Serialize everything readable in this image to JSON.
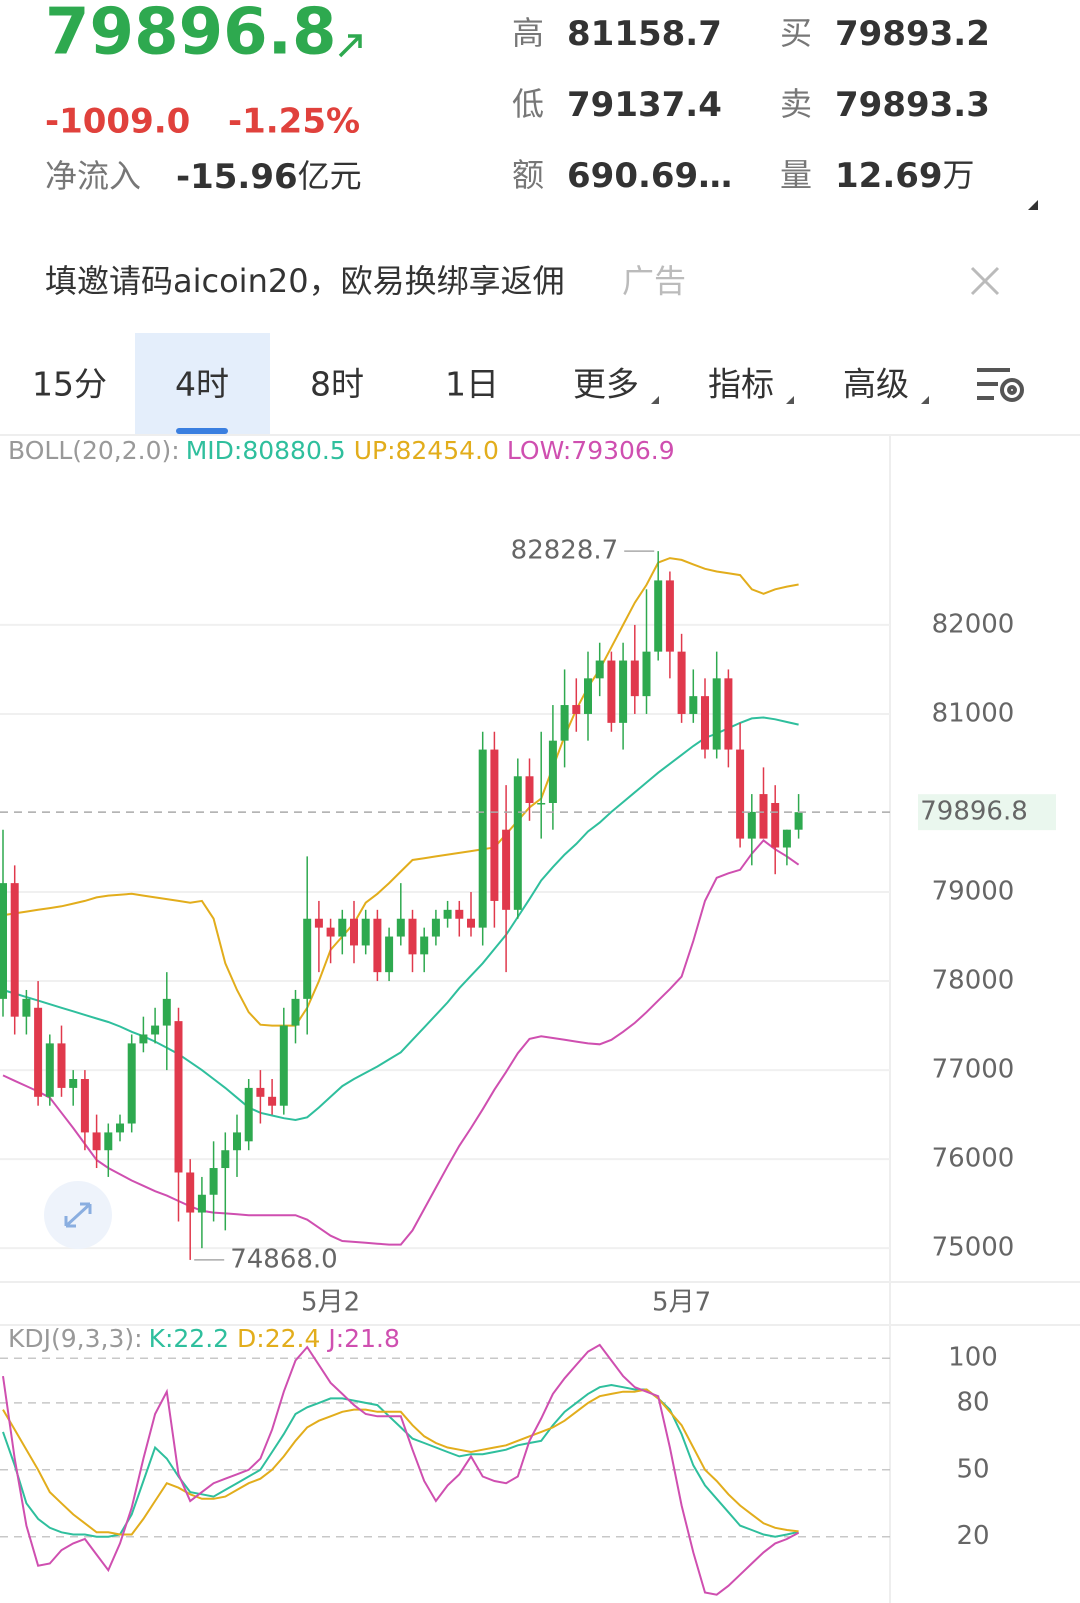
{
  "header": {
    "price": "79896.8",
    "change": "-1009.0",
    "change_pct": "-1.25%",
    "inflow_label": "净流入",
    "inflow_value": "-15.96",
    "inflow_unit": "亿元",
    "stats": [
      {
        "label": "高",
        "value": "81158.7"
      },
      {
        "label": "低",
        "value": "79137.4"
      },
      {
        "label": "额",
        "value": "690.69…"
      },
      {
        "label": "买",
        "value": "79893.2"
      },
      {
        "label": "卖",
        "value": "79893.3"
      },
      {
        "label": "量",
        "value": "12.69",
        "unit": "万"
      }
    ]
  },
  "ad": {
    "text": "填邀请码aicoin20，欧易换绑享返佣",
    "tag": "广告"
  },
  "tabs": [
    "15分",
    "4时",
    "8时",
    "1日",
    "更多",
    "指标",
    "高级"
  ],
  "active_tab": "4时",
  "chart_data": [
    {
      "type": "candlestick",
      "indicator_label": "BOLL(20,2.0):",
      "up_color": "#2ea94f",
      "down_color": "#e0394c",
      "grid": true,
      "categories": [
        null,
        null,
        null,
        null,
        null,
        null,
        null,
        null,
        null,
        null,
        null,
        null,
        null,
        null,
        null,
        null,
        null,
        null,
        null,
        null,
        null,
        null,
        null,
        null,
        null,
        null,
        null,
        null,
        "5月2",
        null,
        null,
        null,
        null,
        null,
        null,
        null,
        null,
        null,
        null,
        null,
        null,
        null,
        null,
        null,
        null,
        null,
        null,
        null,
        null,
        null,
        null,
        null,
        null,
        null,
        null,
        null,
        null,
        null,
        "5月7",
        null,
        null,
        null,
        null,
        null,
        null,
        null,
        null,
        null,
        null
      ],
      "open": [
        77800,
        79100,
        77600,
        77700,
        76700,
        77300,
        76800,
        76900,
        76300,
        76100,
        76300,
        76400,
        77300,
        77400,
        77500,
        77550,
        75850,
        75400,
        75600,
        75900,
        76100,
        76200,
        76800,
        76700,
        76600,
        77500,
        77800,
        78700,
        78600,
        78500,
        78700,
        78400,
        78700,
        78100,
        78500,
        78700,
        78300,
        78500,
        78700,
        78800,
        78700,
        78600,
        80600,
        79700,
        78800,
        80300,
        80000,
        80000,
        80700,
        81100,
        81000,
        81400,
        81600,
        80900,
        81600,
        81200,
        81700,
        82500,
        81700,
        81000,
        81200,
        80600,
        81400,
        80600,
        79600,
        80100,
        80000,
        79500,
        79700
      ],
      "high": [
        79700,
        79300,
        77900,
        78000,
        77400,
        77500,
        77000,
        77000,
        76500,
        76400,
        76500,
        77400,
        77600,
        77700,
        78100,
        77700,
        76000,
        75800,
        76200,
        76300,
        76500,
        76900,
        77000,
        76900,
        77700,
        77900,
        79400,
        78900,
        78700,
        78800,
        78900,
        78800,
        78800,
        78600,
        79100,
        78800,
        78600,
        78800,
        78900,
        78900,
        79000,
        80800,
        80800,
        80200,
        80500,
        80500,
        80800,
        81100,
        81500,
        81400,
        81700,
        81800,
        81700,
        81800,
        82000,
        82400,
        82828.7,
        82600,
        81900,
        81500,
        81400,
        81700,
        81500,
        80900,
        80100,
        80400,
        80200,
        79700,
        80100
      ],
      "low": [
        77600,
        77400,
        77400,
        76600,
        76600,
        76700,
        76600,
        76100,
        75900,
        75800,
        76200,
        76300,
        77200,
        77300,
        77000,
        75300,
        74868.0,
        75000,
        75300,
        75200,
        75800,
        76100,
        76400,
        76500,
        76500,
        77300,
        77400,
        78100,
        78200,
        78300,
        78200,
        78300,
        78000,
        78000,
        78400,
        78100,
        78100,
        78400,
        78600,
        78500,
        78500,
        78400,
        78600,
        78100,
        78700,
        79800,
        79600,
        79700,
        80400,
        80800,
        80700,
        81200,
        80800,
        80600,
        81000,
        81000,
        81600,
        81400,
        80900,
        80900,
        80500,
        80500,
        80400,
        79500,
        79300,
        79600,
        79200,
        79300,
        79600
      ],
      "close": [
        79100,
        77600,
        77800,
        76700,
        77300,
        76800,
        76900,
        76300,
        76100,
        76300,
        76400,
        77300,
        77400,
        77500,
        77800,
        75850,
        75400,
        75600,
        75900,
        76100,
        76300,
        76800,
        76700,
        76600,
        77500,
        77800,
        78700,
        78600,
        78500,
        78700,
        78400,
        78700,
        78100,
        78500,
        78700,
        78300,
        78500,
        78700,
        78800,
        78700,
        78600,
        80600,
        78900,
        78800,
        80300,
        80000,
        80000,
        80700,
        81100,
        81000,
        81400,
        81600,
        80900,
        81600,
        81200,
        81700,
        82500,
        81700,
        81000,
        81200,
        80600,
        81400,
        80600,
        79600,
        79900,
        79600,
        79500,
        79700,
        79896.8
      ],
      "series": [
        {
          "name": "MID:80880.5",
          "color": "#2fbf9d",
          "values": [
            77900,
            77860,
            77820,
            77780,
            77740,
            77700,
            77660,
            77620,
            77580,
            77540,
            77490,
            77430,
            77380,
            77320,
            77250,
            77180,
            77090,
            77000,
            76900,
            76800,
            76690,
            76580,
            76520,
            76490,
            76460,
            76440,
            76470,
            76580,
            76700,
            76820,
            76900,
            76970,
            77040,
            77120,
            77200,
            77340,
            77480,
            77620,
            77760,
            77920,
            78060,
            78200,
            78360,
            78520,
            78720,
            78920,
            79130,
            79280,
            79420,
            79540,
            79680,
            79780,
            79900,
            80010,
            80120,
            80230,
            80340,
            80440,
            80540,
            80640,
            80730,
            80780,
            80840,
            80900,
            80950,
            80960,
            80940,
            80910,
            80881
          ]
        },
        {
          "name": "UP:82454.0",
          "color": "#e2ad1c",
          "values": [
            78740,
            78760,
            78780,
            78800,
            78820,
            78840,
            78870,
            78900,
            78940,
            78960,
            78970,
            78980,
            78960,
            78940,
            78920,
            78900,
            78880,
            78900,
            78700,
            78200,
            77900,
            77650,
            77510,
            77500,
            77500,
            77500,
            77700,
            78000,
            78350,
            78500,
            78650,
            78880,
            78980,
            79100,
            79230,
            79360,
            79380,
            79400,
            79420,
            79440,
            79460,
            79480,
            79500,
            79650,
            79800,
            79950,
            80050,
            80400,
            80750,
            81050,
            81300,
            81500,
            81750,
            82000,
            82250,
            82450,
            82700,
            82750,
            82730,
            82680,
            82630,
            82600,
            82580,
            82560,
            82400,
            82350,
            82400,
            82430,
            82454
          ]
        },
        {
          "name": "LOW:79306.9",
          "color": "#cf4fb0",
          "values": [
            76940,
            76880,
            76820,
            76760,
            76690,
            76520,
            76350,
            76170,
            75990,
            75900,
            75830,
            75760,
            75700,
            75640,
            75590,
            75530,
            75470,
            75420,
            75400,
            75390,
            75380,
            75370,
            75370,
            75370,
            75370,
            75370,
            75320,
            75230,
            75140,
            75080,
            75070,
            75060,
            75050,
            75040,
            75040,
            75200,
            75440,
            75680,
            75920,
            76150,
            76350,
            76560,
            76780,
            76980,
            77190,
            77350,
            77380,
            77360,
            77340,
            77320,
            77300,
            77290,
            77340,
            77430,
            77530,
            77650,
            77780,
            77910,
            78050,
            78450,
            78900,
            79160,
            79210,
            79250,
            79430,
            79580,
            79480,
            79400,
            79307
          ]
        }
      ],
      "ylim": [
        74620,
        83740
      ],
      "yticks": [
        75000,
        76000,
        77000,
        78000,
        79000,
        81000,
        82000
      ],
      "last_price": {
        "value": 79896.8,
        "label": "79896.8"
      },
      "annotations": [
        {
          "value": 82828.7,
          "label": "82828.7"
        },
        {
          "value": 74868.0,
          "label": "74868.0"
        }
      ]
    },
    {
      "type": "line",
      "indicator_label": "KDJ(9,3,3):",
      "grid": true,
      "series": [
        {
          "name": "K:22.2",
          "color": "#2fbf9d",
          "values": [
            67,
            52,
            35,
            28,
            24,
            22,
            21,
            21,
            20,
            20,
            21,
            30,
            45,
            60,
            55,
            47,
            40,
            39,
            38,
            41,
            44,
            47,
            50,
            58,
            66,
            75,
            78,
            80,
            82,
            82,
            81,
            80,
            79,
            74,
            69,
            64,
            62,
            60,
            58,
            56,
            57,
            57,
            58,
            59,
            61,
            62,
            63,
            70,
            76,
            80,
            84,
            87,
            88,
            87,
            86,
            86,
            82,
            77,
            66,
            52,
            43,
            37,
            31,
            25,
            23,
            21,
            20,
            21,
            22.2
          ]
        },
        {
          "name": "D:22.4",
          "color": "#e2ad1c",
          "values": [
            77,
            68,
            59,
            50,
            40,
            35,
            30,
            26,
            22,
            22,
            21,
            21,
            28,
            36,
            44,
            42,
            39,
            37,
            37,
            38,
            41,
            44,
            46,
            50,
            56,
            63,
            69,
            72,
            74,
            76,
            77,
            77,
            76,
            76,
            76,
            70,
            65,
            62,
            60,
            59,
            58,
            59,
            60,
            61,
            63,
            65,
            67,
            69,
            72,
            76,
            80,
            83,
            84,
            85,
            85,
            86,
            82,
            76,
            70,
            60,
            50,
            45,
            39,
            34,
            30,
            26,
            24,
            23,
            22.4
          ]
        },
        {
          "name": "J:21.8",
          "color": "#cf4fb0",
          "values": [
            92,
            55,
            25,
            7,
            8,
            14,
            17,
            19,
            12,
            5,
            17,
            33,
            55,
            75,
            85,
            48,
            36,
            40,
            44,
            46,
            48,
            50,
            55,
            68,
            85,
            99,
            105,
            97,
            89,
            84,
            79,
            75,
            74,
            74,
            74,
            59,
            45,
            36,
            43,
            48,
            56,
            47,
            45,
            44,
            47,
            63,
            73,
            84,
            91,
            97,
            103,
            106,
            99,
            92,
            87,
            85,
            83,
            60,
            34,
            13,
            -5,
            -6,
            -2,
            3,
            8,
            13,
            17,
            19,
            21.8
          ]
        }
      ],
      "ylim": [
        -9.7,
        114.9
      ],
      "yticks": [
        20,
        50,
        80,
        100
      ]
    }
  ]
}
